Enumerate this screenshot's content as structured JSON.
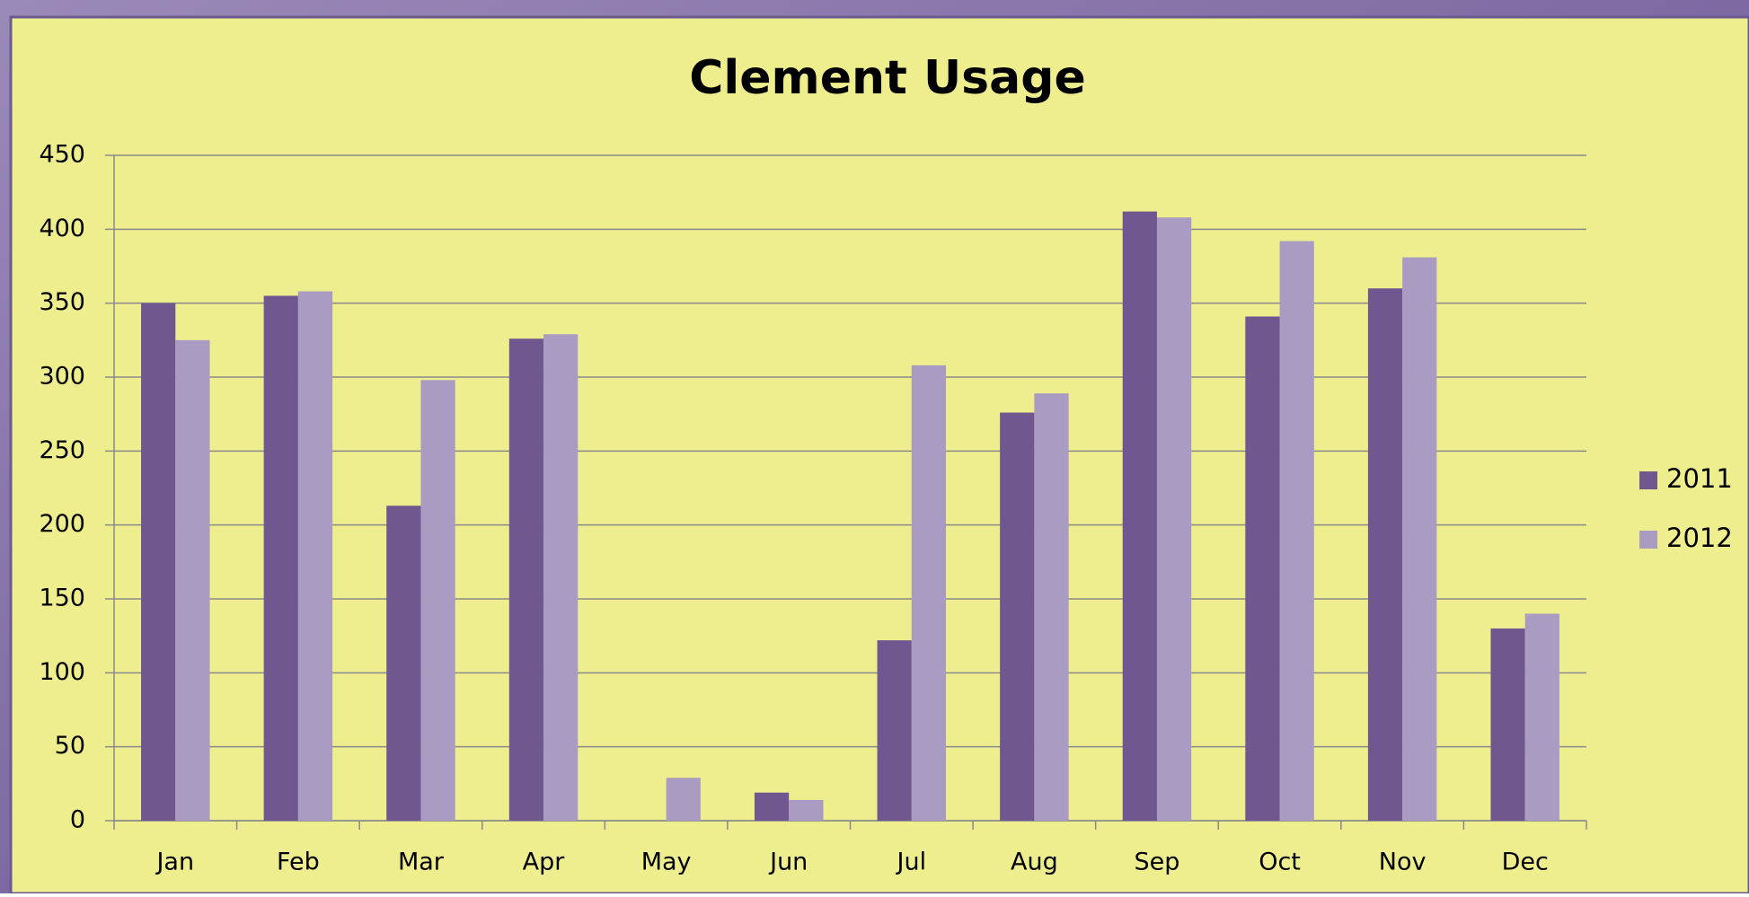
{
  "chart_data": {
    "type": "bar",
    "title": "Clement Usage",
    "categories": [
      "Jan",
      "Feb",
      "Mar",
      "Apr",
      "May",
      "Jun",
      "Jul",
      "Aug",
      "Sep",
      "Oct",
      "Nov",
      "Dec"
    ],
    "series": [
      {
        "name": "2011",
        "color": "#70578f",
        "values": [
          350,
          355,
          213,
          326,
          0,
          19,
          122,
          276,
          412,
          341,
          360,
          130
        ]
      },
      {
        "name": "2012",
        "color": "#a99bc2",
        "values": [
          325,
          358,
          298,
          329,
          29,
          14,
          308,
          289,
          408,
          392,
          381,
          140
        ]
      }
    ],
    "ylim": [
      0,
      450
    ],
    "yticks": [
      0,
      50,
      100,
      150,
      200,
      250,
      300,
      350,
      400,
      450
    ],
    "grid": true,
    "legend": "right"
  }
}
